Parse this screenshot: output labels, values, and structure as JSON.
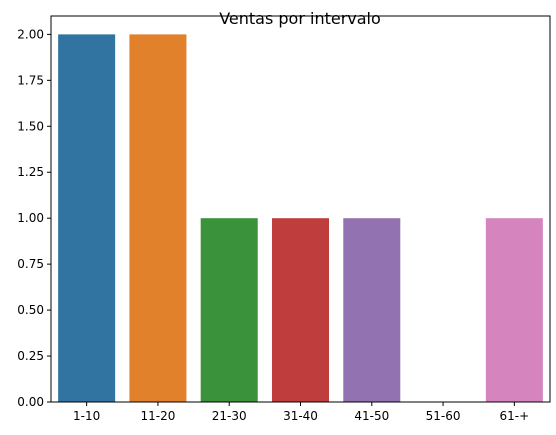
{
  "chart_data": {
    "type": "bar",
    "title": "Ventas por intervalo",
    "xlabel": "",
    "ylabel": "",
    "categories": [
      "1-10",
      "11-20",
      "21-30",
      "31-40",
      "41-50",
      "51-60",
      "61-+"
    ],
    "values": [
      2,
      2,
      1,
      1,
      1,
      0,
      1
    ],
    "colors": [
      "#3274a1",
      "#e1812c",
      "#3a923a",
      "#c03d3e",
      "#9372b2",
      "#845b53",
      "#d684bd"
    ],
    "ylim": [
      0,
      2.1
    ],
    "yticks": [
      "0.00",
      "0.25",
      "0.50",
      "0.75",
      "1.00",
      "1.25",
      "1.50",
      "1.75",
      "2.00"
    ],
    "grid": false,
    "legend": "none"
  }
}
